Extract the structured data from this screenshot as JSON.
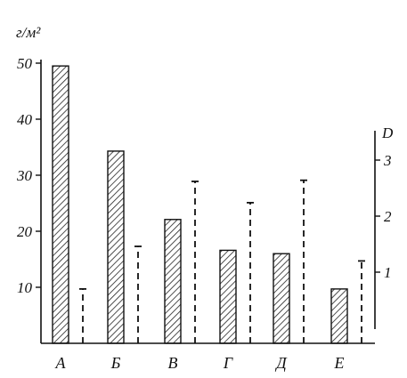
{
  "chart_data": {
    "type": "bar",
    "categories": [
      "А",
      "Б",
      "В",
      "Г",
      "Д",
      "Е"
    ],
    "series": [
      {
        "axis": "left",
        "style": "hatched-bar",
        "values": [
          49.5,
          34.3,
          22.1,
          16.6,
          16.0,
          9.7
        ]
      },
      {
        "axis": "right",
        "style": "dashed-line-with-cap",
        "values": [
          0.7,
          1.46,
          2.62,
          2.24,
          2.64,
          1.2
        ]
      }
    ],
    "y_left": {
      "label": "г/м²",
      "ylim": [
        0,
        50
      ],
      "ticks": [
        10,
        20,
        30,
        40,
        50
      ]
    },
    "y_right": {
      "label": "D",
      "ylim": [
        0,
        3.5
      ],
      "ticks": [
        1,
        2,
        3
      ]
    },
    "grid": false,
    "legend": "none"
  }
}
